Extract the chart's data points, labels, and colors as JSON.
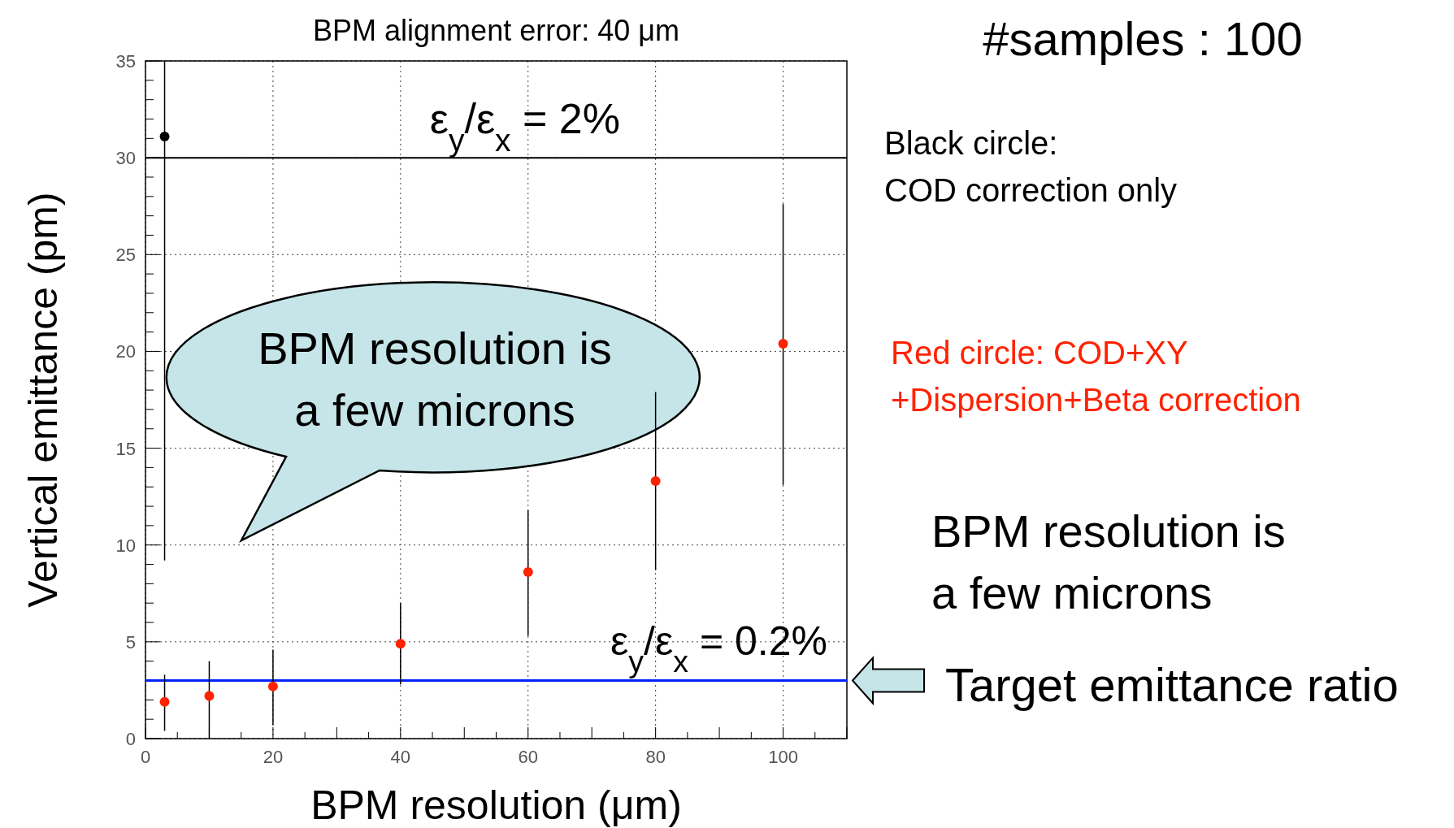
{
  "chart_data": {
    "type": "scatter",
    "title": "BPM alignment error: 40 μm",
    "xlabel": "BPM resolution (μm)",
    "ylabel": "Vertical emittance (pm)",
    "xlim": [
      0,
      110
    ],
    "xticks": [
      0,
      20,
      40,
      60,
      80,
      100
    ],
    "ylim": [
      0,
      35
    ],
    "yticks": [
      0,
      5,
      10,
      15,
      20,
      25,
      30,
      35
    ],
    "grid": true,
    "marker": "circle",
    "series": [
      {
        "color": "#000000",
        "x": [
          3
        ],
        "values": [
          31.1
        ],
        "errors": [
          [
            9.2,
            35
          ]
        ]
      },
      {
        "color": "#ff2200",
        "x": [
          3,
          10,
          20,
          40,
          60,
          80,
          100
        ],
        "values": [
          1.9,
          2.2,
          2.7,
          4.9,
          8.6,
          13.3,
          20.4
        ],
        "errors": [
          [
            0.4,
            3.3
          ],
          [
            0,
            4.0
          ],
          [
            0.7,
            4.6
          ],
          [
            2.8,
            7.0
          ],
          [
            5.3,
            11.8
          ],
          [
            8.7,
            17.9
          ],
          [
            13.1,
            27.6
          ]
        ]
      }
    ],
    "ref_lines": [
      {
        "axis": "y",
        "value": 30,
        "color": "#000000"
      },
      {
        "axis": "y",
        "value": 3,
        "color": "#0022ff"
      }
    ],
    "annotations": [
      "#samples : 100",
      "Black circle:\nCOD correction only",
      "Red circle: COD+XY\n+Dispersion+Beta correction",
      "BPM resolution is\na few microns",
      "BPM resolution is\na few microns",
      "Target emittance ratio",
      {
        "text": "ε$_{y}$/ε$_{x}$ = 2%",
        "y": 30
      },
      {
        "text": "ε$_{y}$/ε$_{x}$ = 0.2%",
        "y": 3
      }
    ]
  }
}
